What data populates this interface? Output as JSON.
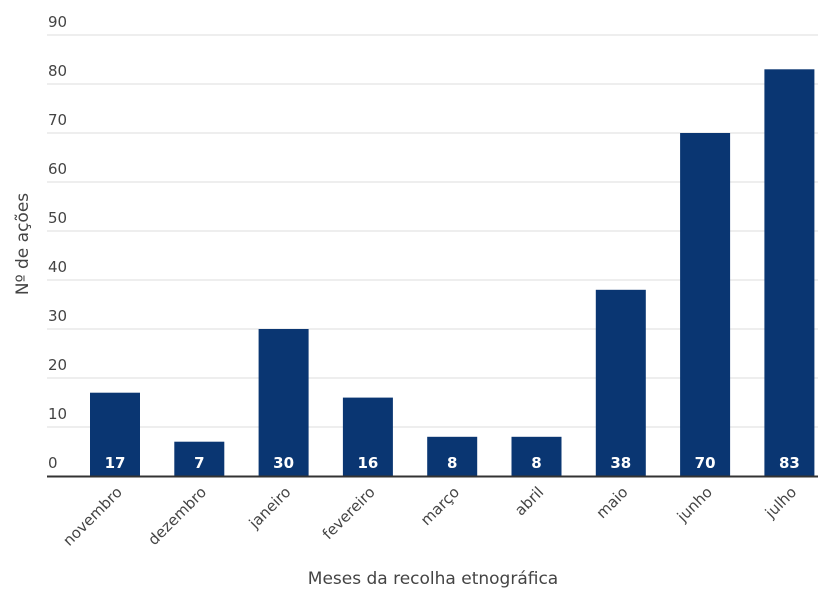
{
  "chart_data": {
    "type": "bar",
    "title": "",
    "xlabel": "Meses da recolha etnográfica",
    "ylabel": "Nº de ações",
    "categories": [
      "novembro",
      "dezembro",
      "janeiro",
      "fevereiro",
      "março",
      "abril",
      "maio",
      "junho",
      "julho"
    ],
    "values": [
      17,
      7,
      30,
      16,
      8,
      8,
      38,
      70,
      83
    ],
    "data_labels": [
      "17",
      "7",
      "30",
      "16",
      "8",
      "8",
      "38",
      "70",
      "83"
    ],
    "yticks": [
      "0",
      "10",
      "20",
      "30",
      "40",
      "50",
      "60",
      "70",
      "80",
      "90"
    ],
    "ylim": [
      0,
      90
    ],
    "grid": true,
    "legend": "none",
    "bar_color": "#0a3672",
    "grid_color": "#dddddd",
    "axis_color": "#333333"
  }
}
